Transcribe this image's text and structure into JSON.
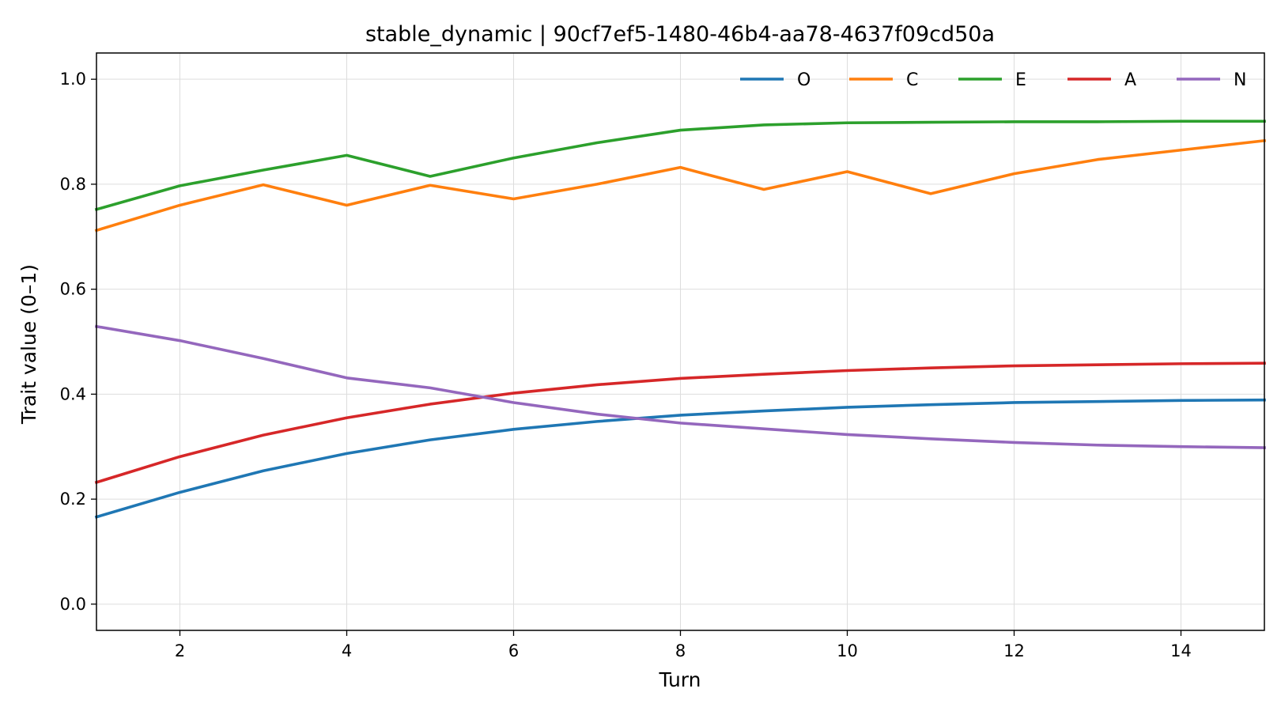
{
  "chart_data": {
    "type": "line",
    "title": "stable_dynamic | 90cf7ef5-1480-46b4-aa78-4637f09cd50a",
    "xlabel": "Turn",
    "ylabel": "Trait value (0–1)",
    "xlim": [
      1,
      15
    ],
    "ylim": [
      -0.05,
      1.05
    ],
    "x_ticks": [
      2,
      4,
      6,
      8,
      10,
      12,
      14
    ],
    "y_ticks": [
      0.0,
      0.2,
      0.4,
      0.6,
      0.8,
      1.0
    ],
    "y_tick_labels": [
      "0.0",
      "0.2",
      "0.4",
      "0.6",
      "0.8",
      "1.0"
    ],
    "grid": true,
    "legend_position": "top-right",
    "legend_layout": "single-row",
    "x": [
      1,
      2,
      3,
      4,
      5,
      6,
      7,
      8,
      9,
      10,
      11,
      12,
      13,
      14,
      15
    ],
    "series": [
      {
        "name": "O",
        "color": "#1f77b4",
        "values": [
          0.166,
          0.213,
          0.254,
          0.287,
          0.313,
          0.333,
          0.348,
          0.36,
          0.368,
          0.375,
          0.38,
          0.384,
          0.386,
          0.388,
          0.389
        ]
      },
      {
        "name": "C",
        "color": "#ff7f0e",
        "values": [
          0.712,
          0.76,
          0.799,
          0.76,
          0.798,
          0.772,
          0.8,
          0.832,
          0.79,
          0.824,
          0.782,
          0.82,
          0.847,
          0.865,
          0.883
        ]
      },
      {
        "name": "E",
        "color": "#2ca02c",
        "values": [
          0.752,
          0.797,
          0.827,
          0.855,
          0.815,
          0.85,
          0.879,
          0.903,
          0.913,
          0.917,
          0.918,
          0.919,
          0.919,
          0.92,
          0.92
        ]
      },
      {
        "name": "A",
        "color": "#d62728",
        "values": [
          0.232,
          0.281,
          0.322,
          0.355,
          0.381,
          0.402,
          0.418,
          0.43,
          0.438,
          0.445,
          0.45,
          0.454,
          0.456,
          0.458,
          0.459
        ]
      },
      {
        "name": "N",
        "color": "#9467bd",
        "values": [
          0.529,
          0.502,
          0.468,
          0.431,
          0.412,
          0.384,
          0.362,
          0.345,
          0.334,
          0.323,
          0.315,
          0.308,
          0.303,
          0.3,
          0.298
        ]
      }
    ]
  }
}
